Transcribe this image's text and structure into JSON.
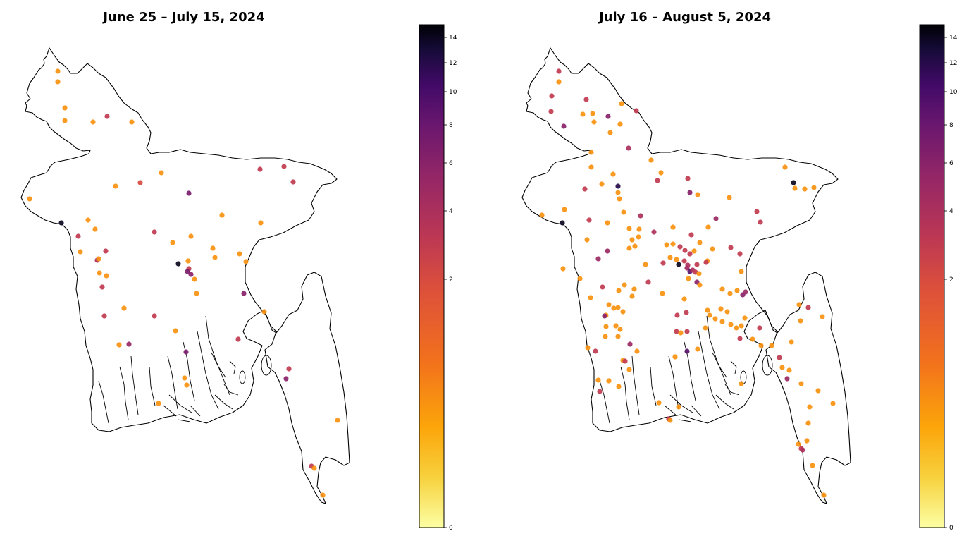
{
  "panels": [
    {
      "title": "June 25 – July 15, 2024",
      "colorbar": {
        "ticks": [
          0,
          2,
          4,
          6,
          8,
          10,
          12,
          14
        ],
        "max": 15
      },
      "points": [
        [
          82,
          101,
          1
        ],
        [
          82,
          116,
          1
        ],
        [
          92,
          153,
          1
        ],
        [
          92,
          171,
          1
        ],
        [
          132,
          173,
          1
        ],
        [
          152,
          165,
          3
        ],
        [
          187,
          173,
          1
        ],
        [
          229,
          245,
          1
        ],
        [
          199,
          259,
          2
        ],
        [
          164,
          264,
          1
        ],
        [
          268,
          274,
          7
        ],
        [
          42,
          282,
          1
        ],
        [
          87,
          316,
          14
        ],
        [
          125,
          312,
          1
        ],
        [
          111,
          335,
          3
        ],
        [
          135,
          325,
          1
        ],
        [
          219,
          329,
          3
        ],
        [
          271,
          335,
          1
        ],
        [
          315,
          305,
          1
        ],
        [
          245,
          344,
          1
        ],
        [
          150,
          356,
          3
        ],
        [
          114,
          357,
          1
        ],
        [
          138,
          369,
          4
        ],
        [
          140,
          367,
          1
        ],
        [
          302,
          352,
          1
        ],
        [
          305,
          365,
          1
        ],
        [
          340,
          360,
          1
        ],
        [
          349,
          371,
          1
        ],
        [
          253,
          374,
          14
        ],
        [
          267,
          370,
          1
        ],
        [
          268,
          381,
          3
        ],
        [
          266,
          385,
          7
        ],
        [
          271,
          389,
          6
        ],
        [
          141,
          387,
          1
        ],
        [
          151,
          391,
          1
        ],
        [
          276,
          396,
          1
        ],
        [
          145,
          407,
          3
        ],
        [
          279,
          416,
          1
        ],
        [
          346,
          416,
          6
        ],
        [
          176,
          437,
          1
        ],
        [
          148,
          448,
          3
        ],
        [
          219,
          448,
          3
        ],
        [
          375,
          442,
          1
        ],
        [
          249,
          469,
          1
        ],
        [
          338,
          481,
          3
        ],
        [
          169,
          489,
          1
        ],
        [
          183,
          488,
          5
        ],
        [
          264,
          499,
          7
        ],
        [
          410,
          523,
          3
        ],
        [
          262,
          536,
          1
        ],
        [
          265,
          546,
          1
        ],
        [
          406,
          537,
          6
        ],
        [
          225,
          572,
          1
        ],
        [
          479,
          596,
          1
        ],
        [
          442,
          661,
          3
        ],
        [
          446,
          664,
          1
        ],
        [
          458,
          702,
          1
        ],
        [
          369,
          240,
          3
        ],
        [
          403,
          236,
          3
        ],
        [
          416,
          258,
          3
        ],
        [
          370,
          316,
          1
        ]
      ]
    },
    {
      "title": "July 16 – August 5, 2024",
      "colorbar": {
        "ticks": [
          0,
          2,
          4,
          6,
          8,
          10,
          12,
          14
        ],
        "max": 15
      },
      "points": [
        [
          793,
          101,
          3
        ],
        [
          793,
          116,
          1
        ],
        [
          783,
          136,
          3
        ],
        [
          782,
          158,
          3
        ],
        [
          832,
          141,
          3
        ],
        [
          827,
          162,
          1
        ],
        [
          841,
          161,
          1
        ],
        [
          843,
          173,
          1
        ],
        [
          863,
          165,
          6
        ],
        [
          882,
          147,
          1
        ],
        [
          903,
          157,
          3
        ],
        [
          800,
          179,
          6
        ],
        [
          880,
          176,
          1
        ],
        [
          866,
          188,
          1
        ],
        [
          892,
          210,
          4
        ],
        [
          839,
          216,
          1
        ],
        [
          924,
          227,
          1
        ],
        [
          839,
          237,
          1
        ],
        [
          938,
          245,
          1
        ],
        [
          976,
          253,
          3
        ],
        [
          870,
          247,
          1
        ],
        [
          877,
          264,
          12
        ],
        [
          933,
          256,
          3
        ],
        [
          854,
          261,
          1
        ],
        [
          830,
          268,
          3
        ],
        [
          877,
          273,
          1
        ],
        [
          979,
          273,
          6
        ],
        [
          990,
          276,
          1
        ],
        [
          879,
          282,
          1
        ],
        [
          1035,
          280,
          1
        ],
        [
          1114,
          237,
          1
        ],
        [
          1126,
          259,
          14
        ],
        [
          1128,
          267,
          1
        ],
        [
          1142,
          268,
          1
        ],
        [
          1155,
          266,
          1
        ],
        [
          769,
          305,
          1
        ],
        [
          801,
          297,
          1
        ],
        [
          798,
          316,
          14
        ],
        [
          885,
          301,
          1
        ],
        [
          836,
          312,
          3
        ],
        [
          862,
          316,
          1
        ],
        [
          909,
          306,
          4
        ],
        [
          1016,
          310,
          5
        ],
        [
          1074,
          300,
          3
        ],
        [
          1079,
          315,
          3
        ],
        [
          833,
          340,
          1
        ],
        [
          893,
          324,
          1
        ],
        [
          907,
          325,
          1
        ],
        [
          928,
          329,
          4
        ],
        [
          955,
          322,
          1
        ],
        [
          981,
          333,
          3
        ],
        [
          1005,
          322,
          1
        ],
        [
          897,
          340,
          1
        ],
        [
          906,
          336,
          1
        ],
        [
          993,
          344,
          1
        ],
        [
          849,
          367,
          5
        ],
        [
          862,
          356,
          5
        ],
        [
          893,
          352,
          1
        ],
        [
          901,
          349,
          1
        ],
        [
          946,
          347,
          1
        ],
        [
          955,
          346,
          1
        ],
        [
          965,
          350,
          3
        ],
        [
          972,
          355,
          3
        ],
        [
          979,
          360,
          3
        ],
        [
          985,
          356,
          1
        ],
        [
          1011,
          353,
          1
        ],
        [
          1037,
          351,
          3
        ],
        [
          1050,
          360,
          3
        ],
        [
          1004,
          370,
          1
        ],
        [
          1002,
          372,
          3
        ],
        [
          916,
          375,
          1
        ],
        [
          941,
          373,
          3
        ],
        [
          951,
          365,
          1
        ],
        [
          960,
          368,
          1
        ],
        [
          963,
          375,
          14
        ],
        [
          971,
          370,
          3
        ],
        [
          975,
          380,
          5
        ],
        [
          979,
          385,
          9
        ],
        [
          983,
          383,
          4
        ],
        [
          987,
          386,
          3
        ],
        [
          976,
          376,
          4
        ],
        [
          989,
          375,
          3
        ],
        [
          992,
          388,
          1
        ],
        [
          977,
          395,
          1
        ],
        [
          989,
          400,
          6
        ],
        [
          799,
          381,
          1
        ],
        [
          823,
          395,
          1
        ],
        [
          855,
          407,
          3
        ],
        [
          878,
          412,
          1
        ],
        [
          900,
          410,
          1
        ],
        [
          886,
          404,
          1
        ],
        [
          920,
          400,
          3
        ],
        [
          993,
          404,
          1
        ],
        [
          1052,
          385,
          1
        ],
        [
          1025,
          410,
          1
        ],
        [
          1036,
          416,
          1
        ],
        [
          1054,
          418,
          6
        ],
        [
          1058,
          414,
          5
        ],
        [
          1046,
          412,
          1
        ],
        [
          838,
          422,
          1
        ],
        [
          897,
          420,
          1
        ],
        [
          940,
          416,
          1
        ],
        [
          864,
          432,
          1
        ],
        [
          871,
          437,
          1
        ],
        [
          877,
          436,
          1
        ],
        [
          860,
          447,
          1
        ],
        [
          884,
          442,
          1
        ],
        [
          858,
          448,
          6
        ],
        [
          971,
          424,
          1
        ],
        [
          961,
          447,
          3
        ],
        [
          974,
          443,
          3
        ],
        [
          1004,
          440,
          1
        ],
        [
          1007,
          447,
          1
        ],
        [
          1023,
          438,
          1
        ],
        [
          1032,
          442,
          1
        ],
        [
          1015,
          452,
          1
        ],
        [
          1025,
          456,
          1
        ],
        [
          1037,
          460,
          1
        ],
        [
          1045,
          465,
          1
        ],
        [
          1052,
          462,
          1
        ],
        [
          1057,
          451,
          1
        ],
        [
          1001,
          465,
          1
        ],
        [
          975,
          470,
          3
        ],
        [
          860,
          463,
          1
        ],
        [
          874,
          462,
          1
        ],
        [
          880,
          467,
          1
        ],
        [
          859,
          477,
          1
        ],
        [
          877,
          477,
          1
        ],
        [
          960,
          470,
          3
        ],
        [
          966,
          472,
          1
        ],
        [
          1078,
          465,
          3
        ],
        [
          1050,
          480,
          3
        ],
        [
          1068,
          481,
          1
        ],
        [
          1080,
          490,
          1
        ],
        [
          1095,
          490,
          1
        ],
        [
          1123,
          485,
          1
        ],
        [
          894,
          488,
          5
        ],
        [
          904,
          498,
          1
        ],
        [
          834,
          493,
          1
        ],
        [
          845,
          498,
          3
        ],
        [
          958,
          506,
          1
        ],
        [
          975,
          498,
          9
        ],
        [
          990,
          495,
          1
        ],
        [
          884,
          511,
          1
        ],
        [
          887,
          512,
          3
        ],
        [
          893,
          524,
          1
        ],
        [
          1106,
          507,
          3
        ],
        [
          1110,
          521,
          1
        ],
        [
          1120,
          525,
          1
        ],
        [
          1117,
          537,
          5
        ],
        [
          1137,
          544,
          1
        ],
        [
          1052,
          544,
          1
        ],
        [
          849,
          539,
          1
        ],
        [
          864,
          540,
          1
        ],
        [
          878,
          548,
          1
        ],
        [
          851,
          555,
          3
        ],
        [
          935,
          571,
          1
        ],
        [
          963,
          577,
          1
        ],
        [
          1161,
          554,
          1
        ],
        [
          1182,
          572,
          1
        ],
        [
          1149,
          577,
          1
        ],
        [
          949,
          594,
          3
        ],
        [
          951,
          596,
          1
        ],
        [
          1147,
          600,
          1
        ],
        [
          1145,
          625,
          1
        ],
        [
          1133,
          630,
          1
        ],
        [
          1137,
          636,
          3
        ],
        [
          1139,
          638,
          4
        ],
        [
          1153,
          660,
          1
        ],
        [
          1169,
          702,
          1
        ],
        [
          1134,
          432,
          1
        ],
        [
          1147,
          436,
          3
        ],
        [
          1167,
          449,
          1
        ],
        [
          1136,
          455,
          1
        ]
      ]
    }
  ]
}
